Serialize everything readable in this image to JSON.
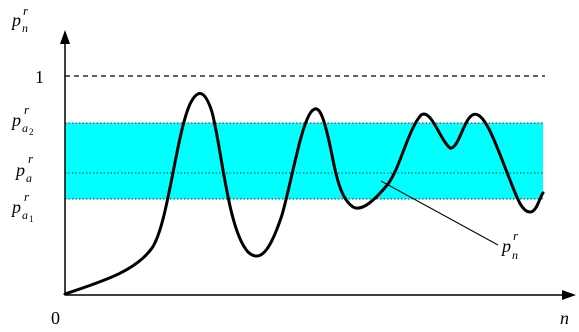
{
  "axes": {
    "y_label": {
      "base": "p",
      "sub": "n",
      "sup": "r"
    },
    "x_label": "n",
    "origin": "0"
  },
  "levels": {
    "one": "1",
    "pa2": {
      "base": "p",
      "sub": "a",
      "sub2": "2",
      "sup": "r"
    },
    "pa": {
      "base": "p",
      "sub": "a",
      "sup": "r"
    },
    "pa1": {
      "base": "p",
      "sub": "a",
      "sub2": "1",
      "sup": "r"
    }
  },
  "curve_label": {
    "base": "p",
    "sub": "n",
    "sup": "r"
  },
  "colors": {
    "band": "#00ffff",
    "curve": "#000000",
    "axis": "#000000"
  }
}
